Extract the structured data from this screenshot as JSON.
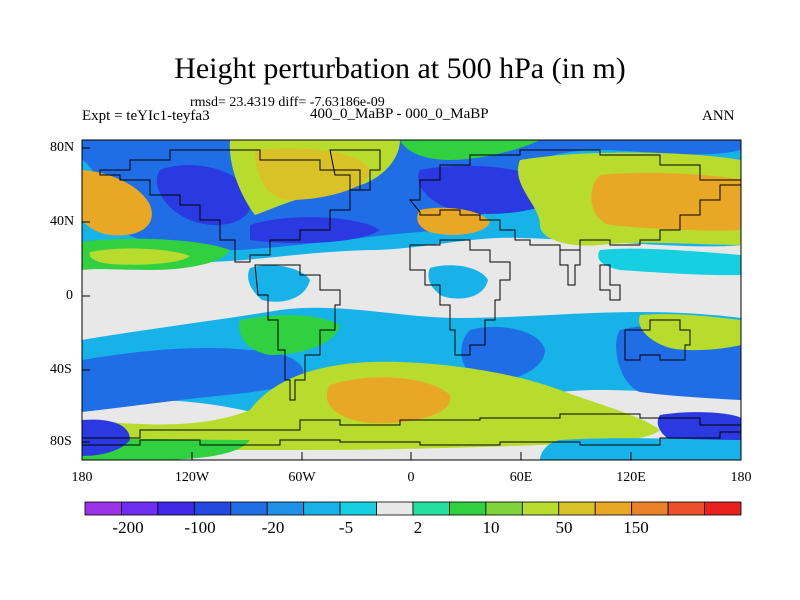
{
  "title": "Height perturbation at 500 hPa (in m)",
  "stats": "rmsd= 23.4319 diff= -7.63186e-09",
  "expt": "Expt = teYIc1-teyfa3",
  "center": "400_0_MaBP - 000_0_MaBP",
  "season": "ANN",
  "ylabels": [
    "80N",
    "40N",
    "0",
    "40S",
    "80S"
  ],
  "xlabels": [
    "180",
    "120W",
    "60W",
    "0",
    "60E",
    "120E",
    "180"
  ],
  "colorbar": {
    "colors": [
      "#9a32e8",
      "#6e2ef0",
      "#3e2ae6",
      "#2248e0",
      "#1f6ee6",
      "#1f90e6",
      "#17b3e8",
      "#16d0e2",
      "#e8e8e8",
      "#22e0a0",
      "#30d040",
      "#7ed43a",
      "#b8dc2e",
      "#d8c228",
      "#e8a826",
      "#ea8028",
      "#ec5028",
      "#e8201e"
    ],
    "labels": [
      "-200",
      "-100",
      "-20",
      "-5",
      "2",
      "10",
      "50",
      "150"
    ]
  },
  "palette": {
    "neutral": "#e8e8e8",
    "lightblue": "#17b3e8",
    "blue": "#1f6ee6",
    "darkblue": "#2a3ae0",
    "green": "#30d040",
    "yellowgreen": "#b8dc2e",
    "yellow": "#d8c228",
    "orange": "#e8a826",
    "cyan": "#16d0e2"
  }
}
